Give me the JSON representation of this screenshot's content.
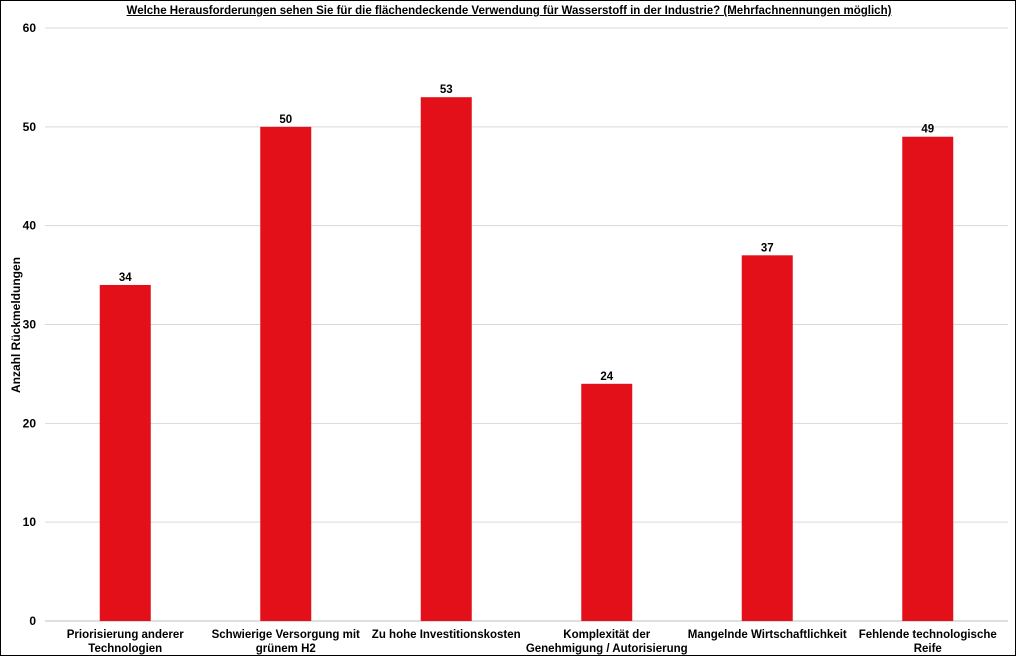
{
  "chart_data": {
    "type": "bar",
    "title": "Welche Herausforderungen sehen Sie für die flächendeckende Verwendung für Wasserstoff in der Industrie? (Mehrfachnennungen möglich)",
    "xlabel": "",
    "ylabel": "Anzahl Rückmeldungen",
    "ylim": [
      0,
      60
    ],
    "yticks": [
      0,
      10,
      20,
      30,
      40,
      50,
      60
    ],
    "grid": true,
    "legend": "none",
    "bar_color": "#e3101a",
    "categories": [
      [
        "Priorisierung anderer",
        "Technologien"
      ],
      [
        "Schwierige Versorgung mit",
        "grünem H2"
      ],
      [
        "Zu hohe Investitionskosten"
      ],
      [
        "Komplexität der",
        "Genehmigung / Autorisierung"
      ],
      [
        "Mangelnde Wirtschaftlichkeit"
      ],
      [
        "Fehlende technologische",
        "Reife"
      ]
    ],
    "values": [
      34,
      50,
      53,
      24,
      37,
      49
    ]
  }
}
